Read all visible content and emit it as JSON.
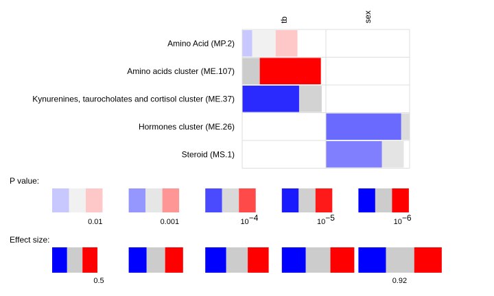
{
  "chart_data": {
    "type": "heatmap",
    "columns": [
      "tb",
      "sex"
    ],
    "rows": [
      "Amino Acid (MP.2)",
      "Amino acids cluster (ME.107)",
      "Kynurenines, taurocholates and cortisol cluster (ME.37)",
      "Hormones cluster (ME.26)",
      "Steroid (MS.1)"
    ],
    "cells": [
      {
        "row": 0,
        "col": 0,
        "blue": 0.12,
        "gray": 0.28,
        "red": 0.26,
        "blue_color": "#c8c8ff",
        "gray_color": "#f1f1f1",
        "red_color": "#ffc8c8"
      },
      {
        "row": 1,
        "col": 0,
        "blue": 0.0,
        "gray": 0.21,
        "red": 0.73,
        "blue_color": "#0000ff",
        "gray_color": "#cccccc",
        "red_color": "#ff0000"
      },
      {
        "row": 2,
        "col": 0,
        "blue": 0.68,
        "gray": 0.27,
        "red": 0.0,
        "blue_color": "#2a2aff",
        "gray_color": "#d3d3d3",
        "red_color": "#ff2a2a"
      },
      {
        "row": 3,
        "col": 1,
        "blue": 0.9,
        "gray": 0.1,
        "red": 0.0,
        "blue_color": "#6a6aff",
        "gray_color": "#dcdcdc",
        "red_color": "#ff6a6a"
      },
      {
        "row": 4,
        "col": 1,
        "blue": 0.67,
        "gray": 0.26,
        "red": 0.0,
        "blue_color": "#8080ff",
        "gray_color": "#e4e4e4",
        "red_color": "#ff8080"
      }
    ],
    "p_value_legend": {
      "title": "P value:",
      "items": [
        {
          "label": "0.01",
          "blue": "#c8c8ff",
          "gray": "#f1f1f1",
          "red": "#ffc8c8"
        },
        {
          "label": "0.001",
          "blue": "#9696ff",
          "gray": "#e6e6e6",
          "red": "#ff9696"
        },
        {
          "label": "10",
          "exp": "−4",
          "blue": "#4a4aff",
          "gray": "#d9d9d9",
          "red": "#ff4a4a"
        },
        {
          "label": "10",
          "exp": "−5",
          "blue": "#1a1aff",
          "gray": "#d0d0d0",
          "red": "#ff1a1a"
        },
        {
          "label": "10",
          "exp": "−6",
          "blue": "#0000ff",
          "gray": "#cccccc",
          "red": "#ff0000"
        }
      ]
    },
    "effect_size_legend": {
      "title": "Effect size:",
      "items": [
        {
          "label": "0.5",
          "total": 0.5
        },
        {
          "label": "",
          "total": 0.6
        },
        {
          "label": "",
          "total": 0.7
        },
        {
          "label": "",
          "total": 0.8
        },
        {
          "label": "0.92",
          "total": 0.92
        }
      ]
    }
  }
}
